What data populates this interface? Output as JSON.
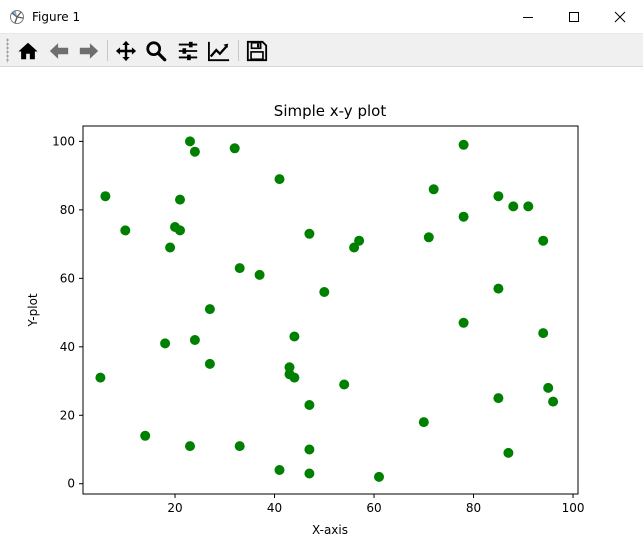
{
  "window": {
    "title": "Figure 1",
    "app_icon": "matplotlib-icon"
  },
  "window_controls": [
    {
      "name": "minimize-button",
      "icon": "minimize-icon"
    },
    {
      "name": "maximize-button",
      "icon": "maximize-icon"
    },
    {
      "name": "close-button",
      "icon": "close-icon"
    }
  ],
  "toolbar": {
    "tools": [
      {
        "name": "home-button",
        "icon": "home-icon"
      },
      {
        "name": "back-button",
        "icon": "arrow-left-icon"
      },
      {
        "name": "forward-button",
        "icon": "arrow-right-icon"
      },
      {
        "name": "pan-button",
        "icon": "move-icon"
      },
      {
        "name": "zoom-button",
        "icon": "magnifier-icon"
      },
      {
        "name": "subplots-button",
        "icon": "sliders-icon"
      },
      {
        "name": "edit-axes-button",
        "icon": "line-chart-icon"
      },
      {
        "name": "save-button",
        "icon": "floppy-disk-icon"
      }
    ]
  },
  "colors": {
    "marker": "#008000",
    "axes": "#000000",
    "toolbar_bg": "#f0f0f0"
  },
  "chart_data": {
    "type": "scatter",
    "title": "Simple x-y plot",
    "xlabel": "X-axis",
    "ylabel": "Y-plot",
    "xlim": [
      1.5,
      101
    ],
    "ylim": [
      -3,
      104.5
    ],
    "xticks": [
      20,
      40,
      60,
      80,
      100
    ],
    "yticks": [
      0,
      20,
      40,
      60,
      80,
      100
    ],
    "grid": false,
    "marker_color": "#008000",
    "points": [
      {
        "x": 5,
        "y": 31
      },
      {
        "x": 6,
        "y": 84
      },
      {
        "x": 10,
        "y": 74
      },
      {
        "x": 14,
        "y": 14
      },
      {
        "x": 18,
        "y": 41
      },
      {
        "x": 19,
        "y": 69
      },
      {
        "x": 20,
        "y": 75
      },
      {
        "x": 21,
        "y": 83
      },
      {
        "x": 21,
        "y": 74
      },
      {
        "x": 23,
        "y": 100
      },
      {
        "x": 23,
        "y": 11
      },
      {
        "x": 24,
        "y": 97
      },
      {
        "x": 24,
        "y": 42
      },
      {
        "x": 27,
        "y": 51
      },
      {
        "x": 27,
        "y": 35
      },
      {
        "x": 32,
        "y": 98
      },
      {
        "x": 33,
        "y": 63
      },
      {
        "x": 33,
        "y": 11
      },
      {
        "x": 37,
        "y": 61
      },
      {
        "x": 41,
        "y": 89
      },
      {
        "x": 41,
        "y": 4
      },
      {
        "x": 43,
        "y": 34
      },
      {
        "x": 43,
        "y": 32
      },
      {
        "x": 44,
        "y": 43
      },
      {
        "x": 44,
        "y": 31
      },
      {
        "x": 47,
        "y": 73
      },
      {
        "x": 47,
        "y": 23
      },
      {
        "x": 47,
        "y": 10
      },
      {
        "x": 47,
        "y": 3
      },
      {
        "x": 50,
        "y": 56
      },
      {
        "x": 54,
        "y": 29
      },
      {
        "x": 56,
        "y": 69
      },
      {
        "x": 57,
        "y": 71
      },
      {
        "x": 61,
        "y": 2
      },
      {
        "x": 70,
        "y": 18
      },
      {
        "x": 71,
        "y": 72
      },
      {
        "x": 72,
        "y": 86
      },
      {
        "x": 78,
        "y": 99
      },
      {
        "x": 78,
        "y": 78
      },
      {
        "x": 78,
        "y": 47
      },
      {
        "x": 85,
        "y": 84
      },
      {
        "x": 85,
        "y": 57
      },
      {
        "x": 85,
        "y": 25
      },
      {
        "x": 87,
        "y": 9
      },
      {
        "x": 88,
        "y": 81
      },
      {
        "x": 91,
        "y": 81
      },
      {
        "x": 94,
        "y": 71
      },
      {
        "x": 94,
        "y": 44
      },
      {
        "x": 95,
        "y": 28
      },
      {
        "x": 96,
        "y": 24
      }
    ]
  }
}
